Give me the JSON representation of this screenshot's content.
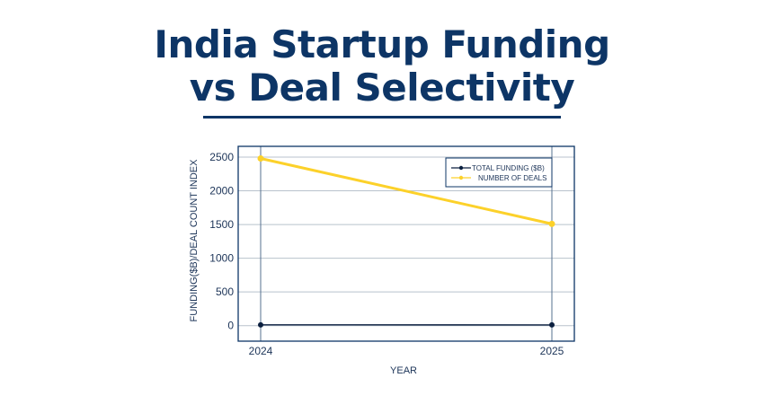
{
  "title_line1": "India Startup Funding",
  "title_line2": "vs Deal Selectivity",
  "colors": {
    "title": "#0d3566",
    "frame": "#0d3566",
    "grid": "#b8c2cc",
    "funding": "#0b1f3f",
    "deals": "#fcd12a"
  },
  "chart_data": {
    "type": "line",
    "title": "India Startup Funding vs Deal Selectivity",
    "xlabel": "YEAR",
    "ylabel": "FUNDING($B)/DEAL COUNT INDEX",
    "x": [
      "2024",
      "2025"
    ],
    "ylim": [
      -230,
      2660
    ],
    "yticks": [
      0,
      500,
      1000,
      1500,
      2000,
      2500
    ],
    "grid": true,
    "legend_position": "top-right",
    "series": [
      {
        "name": "TOTAL FUNDING ($B)",
        "values": [
          12,
          11
        ],
        "color": "#0b1f3f"
      },
      {
        "name": "NUMBER OF DEALS",
        "values": [
          2480,
          1510
        ],
        "color": "#fcd12a"
      }
    ]
  }
}
